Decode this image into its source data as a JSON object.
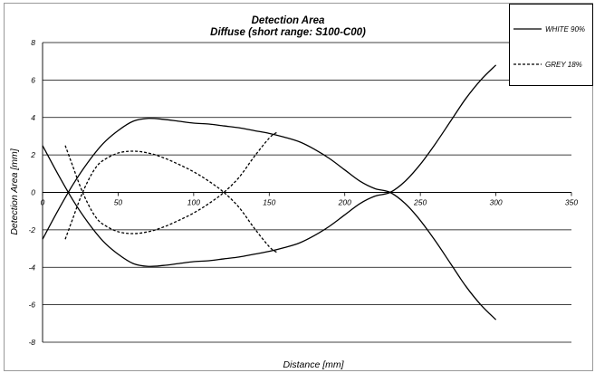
{
  "chart_data": {
    "type": "line",
    "title": "Detection Area",
    "subtitle": "Diffuse (short range: S100-C00)",
    "xlabel": "Distance [mm]",
    "ylabel": "Detection Area [mm]",
    "xlim": [
      0,
      350
    ],
    "ylim": [
      -8,
      8
    ],
    "xticks": [
      "0",
      "50",
      "100",
      "150",
      "200",
      "250",
      "300",
      "350"
    ],
    "yticks": [
      "8",
      "6",
      "4",
      "2",
      "0",
      "-2",
      "-4",
      "-6",
      "-8"
    ],
    "grid": "horizontal",
    "legend": "top-right",
    "series": [
      {
        "name": "WHITE 90%",
        "style": "solid",
        "color": "#000000",
        "branches": [
          {
            "x": [
              0,
              10,
              20,
              30,
              40,
              50,
              60,
              70,
              80,
              90,
              100,
              110,
              120,
              130,
              140,
              150,
              160,
              170,
              180,
              190,
              200,
              210,
              220,
              230,
              240,
              250,
              260,
              270,
              280,
              290,
              300
            ],
            "y": [
              -2.5,
              -1.0,
              0.4,
              1.6,
              2.6,
              3.3,
              3.8,
              3.95,
              3.9,
              3.8,
              3.7,
              3.65,
              3.55,
              3.45,
              3.3,
              3.15,
              2.95,
              2.7,
              2.3,
              1.8,
              1.2,
              0.6,
              0.2,
              0.0,
              -0.6,
              -1.5,
              -2.6,
              -3.8,
              -5.0,
              -6.0,
              -6.8
            ]
          },
          {
            "x": [
              0,
              10,
              20,
              30,
              40,
              50,
              60,
              70,
              80,
              90,
              100,
              110,
              120,
              130,
              140,
              150,
              160,
              170,
              180,
              190,
              200,
              210,
              220,
              230,
              240,
              250,
              260,
              270,
              280,
              290,
              300
            ],
            "y": [
              2.5,
              1.0,
              -0.4,
              -1.6,
              -2.6,
              -3.3,
              -3.8,
              -3.95,
              -3.9,
              -3.8,
              -3.7,
              -3.65,
              -3.55,
              -3.45,
              -3.3,
              -3.15,
              -2.95,
              -2.7,
              -2.3,
              -1.8,
              -1.2,
              -0.6,
              -0.2,
              0.0,
              0.6,
              1.5,
              2.6,
              3.8,
              5.0,
              6.0,
              6.8
            ]
          }
        ]
      },
      {
        "name": "GREY 18%",
        "style": "dashed",
        "color": "#000000",
        "branches": [
          {
            "x": [
              15,
              20,
              25,
              30,
              35,
              40,
              50,
              60,
              70,
              80,
              90,
              100,
              110,
              120,
              130,
              140,
              150,
              155
            ],
            "y": [
              -2.5,
              -1.4,
              -0.3,
              0.6,
              1.3,
              1.7,
              2.1,
              2.2,
              2.1,
              1.85,
              1.5,
              1.1,
              0.6,
              0.0,
              -0.8,
              -1.9,
              -2.9,
              -3.2
            ]
          },
          {
            "x": [
              15,
              20,
              25,
              30,
              35,
              40,
              50,
              60,
              70,
              80,
              90,
              100,
              110,
              120,
              130,
              140,
              150,
              155
            ],
            "y": [
              2.5,
              1.4,
              0.3,
              -0.6,
              -1.3,
              -1.7,
              -2.1,
              -2.2,
              -2.1,
              -1.85,
              -1.5,
              -1.1,
              -0.6,
              0.0,
              0.8,
              1.9,
              2.9,
              3.2
            ]
          }
        ]
      }
    ]
  }
}
